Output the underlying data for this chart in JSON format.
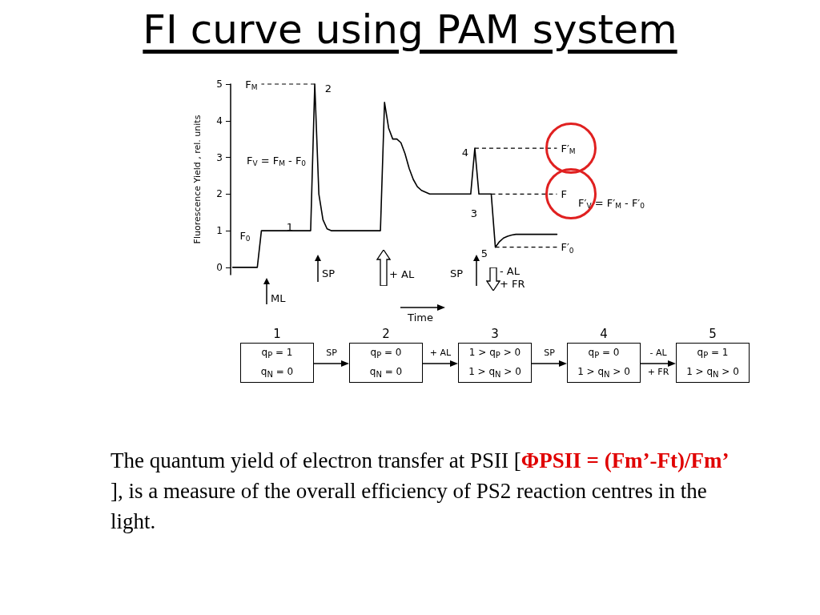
{
  "chart_data": {
    "type": "line",
    "title": "FI curve using PAM system",
    "ylabel": "Fluorescence Yield , rel. units",
    "categories": [
      null,
      null,
      null,
      null,
      null,
      null,
      null,
      null,
      null,
      null,
      null,
      null,
      null,
      null,
      null,
      null,
      null,
      null,
      null,
      null,
      null,
      null,
      null,
      null,
      null,
      null,
      null,
      null,
      null,
      null,
      null,
      null,
      null,
      null,
      null,
      null,
      null,
      null,
      null,
      null,
      null,
      null,
      null,
      null,
      null,
      null,
      null,
      null,
      null,
      null,
      null,
      null,
      null,
      null,
      null,
      null,
      null,
      null,
      null,
      null,
      null,
      null,
      null,
      null,
      null,
      null,
      null,
      null,
      null,
      null,
      null,
      null,
      null,
      null,
      null,
      null,
      null,
      null,
      null,
      null
    ],
    "values": [
      0,
      0,
      0,
      0,
      0,
      0,
      0,
      1,
      1,
      1,
      1,
      1,
      1,
      1,
      1,
      1,
      1,
      1,
      1,
      1,
      5,
      2,
      1.3,
      1.05,
      1,
      1,
      1,
      1,
      1,
      1,
      1,
      1,
      1,
      1,
      1,
      1,
      1,
      4.5,
      3.8,
      3.5,
      3.5,
      3.4,
      3.1,
      2.7,
      2.4,
      2.2,
      2.1,
      2.05,
      2,
      2,
      2,
      2,
      2,
      2,
      2,
      2,
      2,
      2,
      2,
      3.25,
      2,
      2,
      2,
      2,
      0.55,
      0.7,
      0.8,
      0.85,
      0.88,
      0.9,
      0.9,
      0.9,
      0.9,
      0.9,
      0.9,
      0.9,
      0.9,
      0.9,
      0.9,
      0.9
    ],
    "color": "#000000",
    "marker": "none",
    "line_style": "solid",
    "ylim": [
      -0.2,
      5
    ],
    "yticks": [
      0,
      1,
      2,
      3,
      4,
      5
    ],
    "tick_labels": "y",
    "grid": false,
    "ref_lines": [
      {
        "axis": "y",
        "value": 5,
        "label": "F$_{M}$",
        "line_style": "dashed"
      },
      {
        "axis": "y",
        "value": 3.25,
        "label": "F′$_{M}$",
        "line_style": "dashed"
      },
      {
        "axis": "y",
        "value": 2,
        "label": "F",
        "line_style": "dashed"
      },
      {
        "axis": "y",
        "value": 0.55,
        "label": "F′$_{0}$",
        "line_style": "dashed"
      }
    ],
    "annotations": [
      "F$_{0}$",
      "1",
      "2",
      "F$_{V}$ = F$_{M}$ - F$_{0}$",
      "4",
      "3",
      "5",
      "F′$_{V}$ = F′$_{M}$ - F′$_{0}$",
      "ML",
      "SP",
      "+ AL",
      "SP",
      "- AL\n+ FR",
      "Time",
      "1",
      "q$_{P}$ = 1",
      "q$_{N}$ = 0",
      "SP",
      "2",
      "q$_{P}$ = 0",
      "q$_{N}$ = 0",
      "+ AL",
      "3",
      "1 > q$_{P}$ > 0",
      "1 > q$_{N}$ > 0",
      "SP",
      "4",
      "q$_{P}$ = 0",
      "1 > q$_{N}$ > 0",
      "- AL\n+ FR",
      "5",
      "q$_{P}$ = 1",
      "1 > q$_{N}$ > 0",
      "The quantum yield of electron transfer at PSII [",
      "ΦPSII = (Fm’-Ft)/Fm’",
      " ], is a measure of the overall efficiency of PS2 reaction centres in the light."
    ]
  }
}
